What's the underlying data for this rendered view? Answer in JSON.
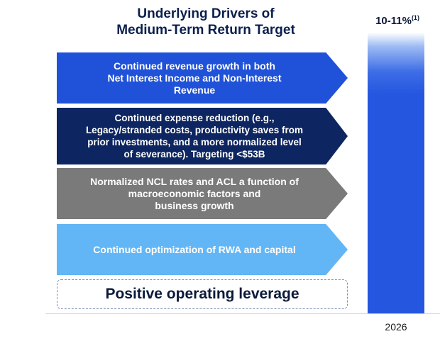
{
  "title": {
    "line1": "Underlying Drivers of",
    "line2": "Medium-Term Return Target"
  },
  "drivers": [
    {
      "text": "Continued revenue growth in both\nNet Interest Income and Non-Interest\nRevenue",
      "color": "#1f52d8"
    },
    {
      "text": "Continued expense reduction (e.g.,\nLegacy/stranded costs, productivity saves from\nprior investments, and a more normalized level\nof severance). Targeting <$53B",
      "color": "#0d2560"
    },
    {
      "text": "Normalized NCL rates and ACL a function of\nmacroeconomic factors and\nbusiness growth",
      "color": "#7a7a7a"
    },
    {
      "text": "Continued optimization of RWA and capital",
      "color": "#62b6f5"
    }
  ],
  "leverage": {
    "text": "Positive operating leverage"
  },
  "target": {
    "value": "10-11%",
    "footnote": "(1)",
    "year": "2026",
    "color": "#2456e0"
  }
}
